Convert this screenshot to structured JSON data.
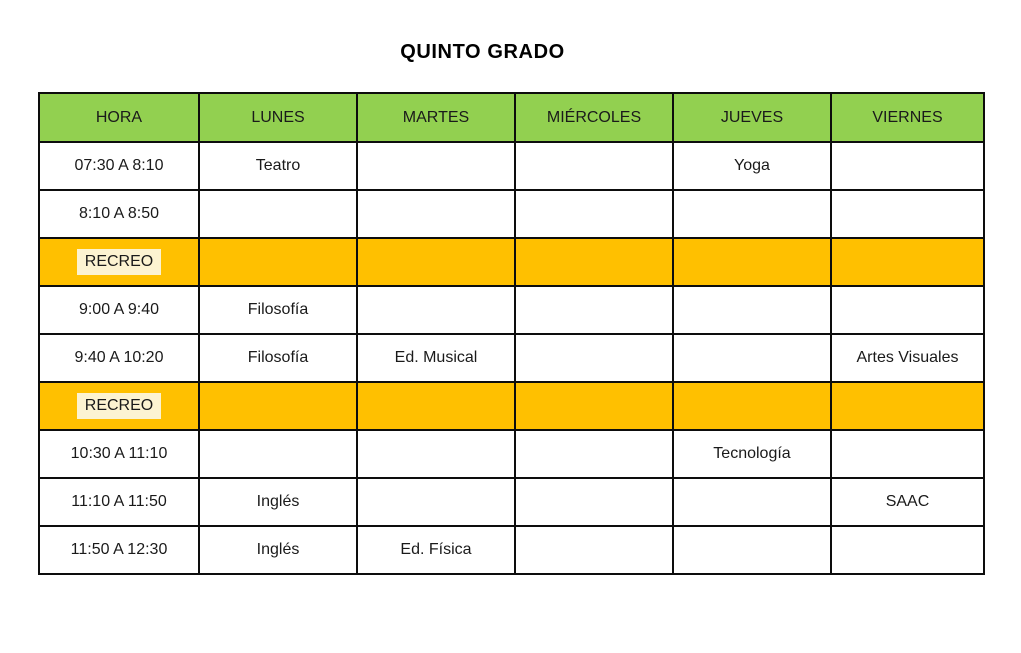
{
  "page": {
    "title": "QUINTO GRADO"
  },
  "schedule": {
    "columns": [
      "HORA",
      "LUNES",
      "MARTES",
      "MIÉRCOLES",
      "JUEVES",
      "VIERNES"
    ],
    "rows": [
      {
        "type": "class",
        "hora": "07:30 A 8:10",
        "cells": [
          "Teatro",
          "",
          "",
          "Yoga",
          ""
        ]
      },
      {
        "type": "class",
        "hora": "8:10 A 8:50",
        "cells": [
          "",
          "",
          "",
          "",
          ""
        ]
      },
      {
        "type": "recess",
        "hora": "RECREO",
        "cells": [
          "",
          "",
          "",
          "",
          ""
        ]
      },
      {
        "type": "class",
        "hora": "9:00 A 9:40",
        "cells": [
          "Filosofía",
          "",
          "",
          "",
          ""
        ]
      },
      {
        "type": "class",
        "hora": "9:40 A 10:20",
        "cells": [
          "Filosofía",
          "Ed. Musical",
          "",
          "",
          "Artes Visuales"
        ]
      },
      {
        "type": "recess",
        "hora": "RECREO",
        "cells": [
          "",
          "",
          "",
          "",
          ""
        ]
      },
      {
        "type": "class",
        "hora": "10:30 A 11:10",
        "cells": [
          "",
          "",
          "",
          "Tecnología",
          ""
        ]
      },
      {
        "type": "class",
        "hora": "11:10 A 11:50",
        "cells": [
          "Inglés",
          "",
          "",
          "",
          "SAAC"
        ]
      },
      {
        "type": "class",
        "hora": "11:50 A 12:30",
        "cells": [
          "Inglés",
          "Ed. Física",
          "",
          "",
          ""
        ]
      }
    ]
  },
  "colors": {
    "header_bg": "#92D050",
    "recess_bg": "#FFC000",
    "recess_highlight_bg": "#FCF3D1",
    "border": "#0d0d0d",
    "text": "#1a1a1a"
  }
}
